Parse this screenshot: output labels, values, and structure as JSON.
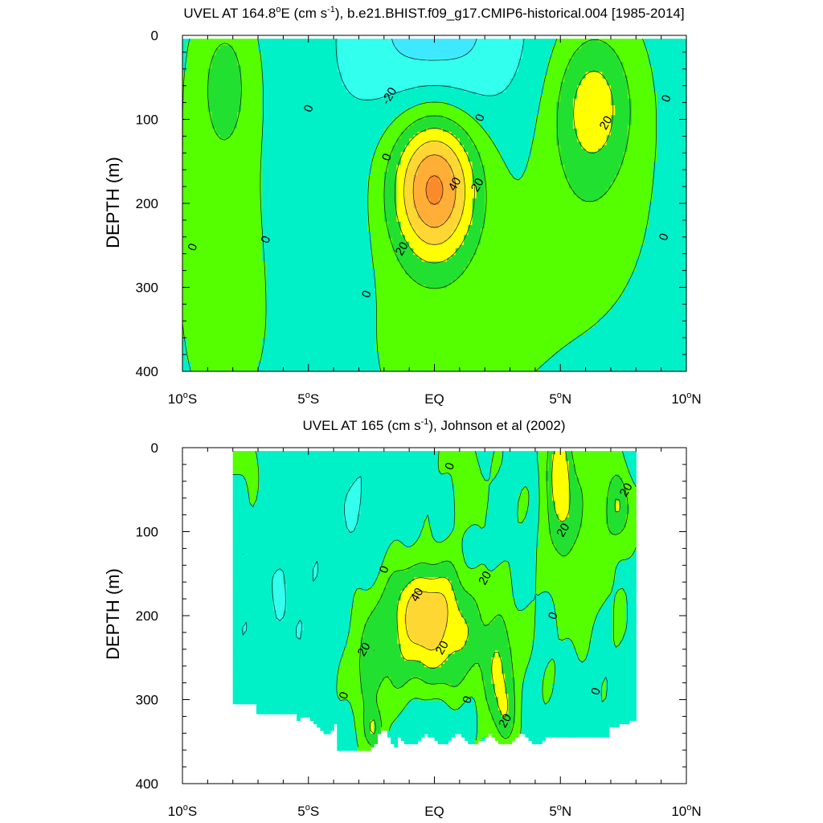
{
  "chart_data": [
    {
      "type": "heatmap",
      "title": "UVEL AT 164.8°E (cm s-1), b.e21.BHIST.f09_g17.CMIP6-historical.004 [1985-2014]",
      "title_parts": {
        "pre": "UVEL AT 164.8",
        "deg": "o",
        "mid": "E (cm s",
        "sup": "-1",
        "post": "), b.e21.BHIST.f09_g17.CMIP6-historical.004 [1985-2014]"
      },
      "xlabel": "",
      "ylabel": "DEPTH (m)",
      "xlim": [
        -10,
        10
      ],
      "ylim": [
        0,
        400
      ],
      "y_reversed": true,
      "x_ticks": [
        {
          "value": -10,
          "num": "10",
          "hemi": "S"
        },
        {
          "value": -5,
          "num": "5",
          "hemi": "S"
        },
        {
          "value": 0,
          "num": "EQ",
          "hemi": ""
        },
        {
          "value": 5,
          "num": "5",
          "hemi": "N"
        },
        {
          "value": 10,
          "num": "10",
          "hemi": "N"
        }
      ],
      "y_ticks": [
        "0",
        "100",
        "200",
        "300",
        "400"
      ],
      "contour_interval": 10,
      "contour_labels": [
        {
          "text": "-20",
          "lat": -1.8,
          "depth": 72
        },
        {
          "text": "0",
          "lat": -5.0,
          "depth": 87
        },
        {
          "text": "0",
          "lat": 1.8,
          "depth": 98
        },
        {
          "text": "0",
          "lat": 9.2,
          "depth": 75
        },
        {
          "text": "0",
          "lat": -1.9,
          "depth": 145
        },
        {
          "text": "0",
          "lat": -9.6,
          "depth": 252
        },
        {
          "text": "0",
          "lat": -6.7,
          "depth": 243
        },
        {
          "text": "0",
          "lat": 9.1,
          "depth": 240
        },
        {
          "text": "0",
          "lat": -2.7,
          "depth": 308
        },
        {
          "text": "40",
          "lat": 0.8,
          "depth": 177
        },
        {
          "text": "20",
          "lat": 1.7,
          "depth": 178
        },
        {
          "text": "20",
          "lat": -1.3,
          "depth": 254
        },
        {
          "text": "20",
          "lat": 6.8,
          "depth": 104
        }
      ]
    },
    {
      "type": "heatmap",
      "title": "UVEL AT 165 (cm s-1), Johnson et al (2002)",
      "title_parts": {
        "pre": "UVEL AT 165 (cm s",
        "deg": "",
        "mid": "",
        "sup": "-1",
        "post": "), Johnson et al (2002)"
      },
      "xlabel": "",
      "ylabel": "DEPTH (m)",
      "xlim": [
        -10,
        10
      ],
      "ylim": [
        0,
        400
      ],
      "y_reversed": true,
      "x_ticks": [
        {
          "value": -10,
          "num": "10",
          "hemi": "S"
        },
        {
          "value": -5,
          "num": "5",
          "hemi": "S"
        },
        {
          "value": 0,
          "num": "EQ",
          "hemi": ""
        },
        {
          "value": 5,
          "num": "5",
          "hemi": "N"
        },
        {
          "value": 10,
          "num": "10",
          "hemi": "N"
        }
      ],
      "y_ticks": [
        "0",
        "100",
        "200",
        "300",
        "400"
      ],
      "data_lat_range": [
        -8,
        8
      ],
      "contour_interval": 10,
      "contour_labels": [
        {
          "text": "0",
          "lat": 0.6,
          "depth": 22
        },
        {
          "text": "20",
          "lat": 7.6,
          "depth": 50
        },
        {
          "text": "20",
          "lat": 5.1,
          "depth": 98
        },
        {
          "text": "0",
          "lat": -2.0,
          "depth": 145
        },
        {
          "text": "20",
          "lat": 2.0,
          "depth": 155
        },
        {
          "text": "40",
          "lat": -0.7,
          "depth": 175
        },
        {
          "text": "0",
          "lat": 4.7,
          "depth": 200
        },
        {
          "text": "20",
          "lat": 0.3,
          "depth": 238
        },
        {
          "text": "20",
          "lat": -2.8,
          "depth": 240
        },
        {
          "text": "0",
          "lat": -3.6,
          "depth": 295
        },
        {
          "text": "0",
          "lat": 1.3,
          "depth": 300
        },
        {
          "text": "0",
          "lat": 6.4,
          "depth": 290
        },
        {
          "text": "20",
          "lat": 2.8,
          "depth": 325
        }
      ]
    }
  ],
  "colors": {
    "below_neg20": "#3ee8ff",
    "neg20_to_neg10": "#33ffee",
    "neg10_to_0": "#00f0c8",
    "zero_to_10": "#55ff00",
    "ten_to_20": "#22e030",
    "twenty_to_30": "#ffff00",
    "thirty_to_40": "#ffd733",
    "forty_to_50": "#ffae37",
    "above_50": "#fb8a2a",
    "contour_line": "#1a1a1a"
  }
}
